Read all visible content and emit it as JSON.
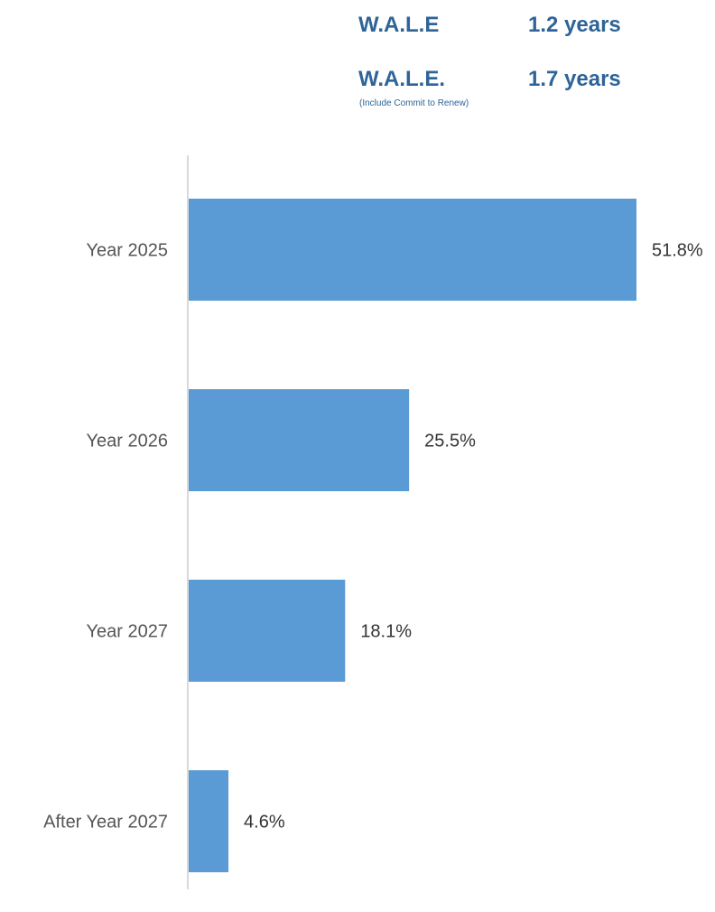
{
  "wale": {
    "row1_label": "W.A.L.E",
    "row1_value": "1.2 years",
    "row2_label": "W.A.L.E.",
    "row2_value": "1.7 years",
    "row2_note": "(Include Commit to Renew)"
  },
  "chart_data": {
    "type": "bar",
    "orientation": "horizontal",
    "categories": [
      "Year 2025",
      "Year 2026",
      "Year 2027",
      "After Year 2027"
    ],
    "values": [
      51.8,
      25.5,
      18.1,
      4.6
    ],
    "value_labels": [
      "51.8%",
      "25.5%",
      "18.1%",
      "4.6%"
    ],
    "unit": "%",
    "xlim": [
      0,
      51.8
    ],
    "grid": false,
    "legend": "none",
    "bar_color": "#5b9bd5",
    "axis_color": "#d9d9d9"
  }
}
